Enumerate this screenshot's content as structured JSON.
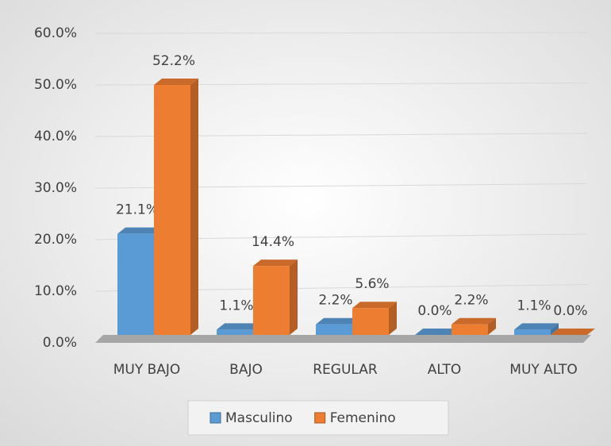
{
  "chart_data": {
    "type": "bar3d",
    "categories": [
      "MUY BAJO",
      "BAJO",
      "REGULAR",
      "ALTO",
      "MUY ALTO"
    ],
    "series": [
      {
        "name": "Masculino",
        "color": "#5b9bd5",
        "values": [
          21.1,
          1.1,
          2.2,
          0.0,
          1.1
        ],
        "value_labels": [
          "21.1%",
          "1.1%",
          "2.2%",
          "0.0%",
          "1.1%"
        ]
      },
      {
        "name": "Femenino",
        "color": "#ed7d31",
        "values": [
          52.2,
          14.4,
          5.6,
          2.2,
          0.0
        ],
        "value_labels": [
          "52.2%",
          "14.4%",
          "5.6%",
          "2.2%",
          "0.0%"
        ]
      }
    ],
    "ylim": [
      0,
      60
    ],
    "yticks": [
      {
        "value": 0,
        "label": "0.0%"
      },
      {
        "value": 10,
        "label": "10.0%"
      },
      {
        "value": 20,
        "label": "20.0%"
      },
      {
        "value": 30,
        "label": "30.0%"
      },
      {
        "value": 40,
        "label": "40.0%"
      },
      {
        "value": 50,
        "label": "50.0%"
      },
      {
        "value": 60,
        "label": "60.0%"
      }
    ],
    "grid": true,
    "legend": "bottom"
  }
}
